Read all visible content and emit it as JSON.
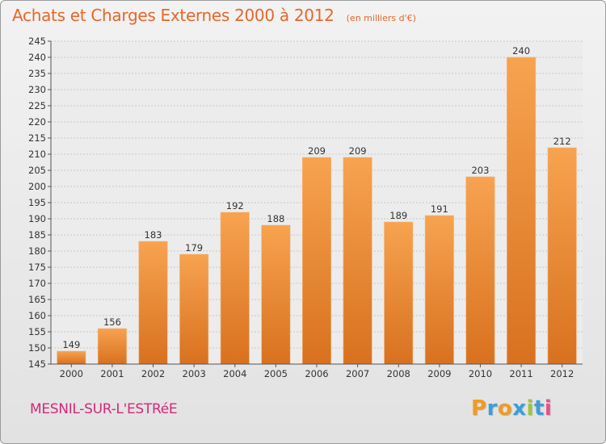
{
  "chart_data": {
    "type": "bar",
    "title": "Achats et Charges Externes 2000 à 2012",
    "unit_note": "(en milliers d'€)",
    "categories": [
      "2000",
      "2001",
      "2002",
      "2003",
      "2004",
      "2005",
      "2006",
      "2007",
      "2008",
      "2009",
      "2010",
      "2011",
      "2012"
    ],
    "values": [
      149,
      156,
      183,
      179,
      192,
      188,
      209,
      209,
      189,
      191,
      203,
      240,
      212
    ],
    "ylim": [
      145,
      245
    ],
    "yticks": [
      145,
      150,
      155,
      160,
      165,
      170,
      175,
      180,
      185,
      190,
      195,
      200,
      205,
      210,
      215,
      220,
      225,
      230,
      235,
      240,
      245
    ],
    "grid": "horizontal",
    "bar_color": "#f0913a"
  },
  "footer": {
    "commune": "MESNIL-SUR-L'ESTRéE",
    "logo_letters": [
      {
        "ch": "P",
        "color": "#f19a22"
      },
      {
        "ch": "r",
        "color": "#3a9fd8"
      },
      {
        "ch": "o",
        "color": "#f19a22"
      },
      {
        "ch": "x",
        "color": "#3a9fd8"
      },
      {
        "ch": "i",
        "color": "#9cc63c"
      },
      {
        "ch": "t",
        "color": "#3a9fd8"
      },
      {
        "ch": "i",
        "color": "#e84f8b"
      }
    ]
  }
}
